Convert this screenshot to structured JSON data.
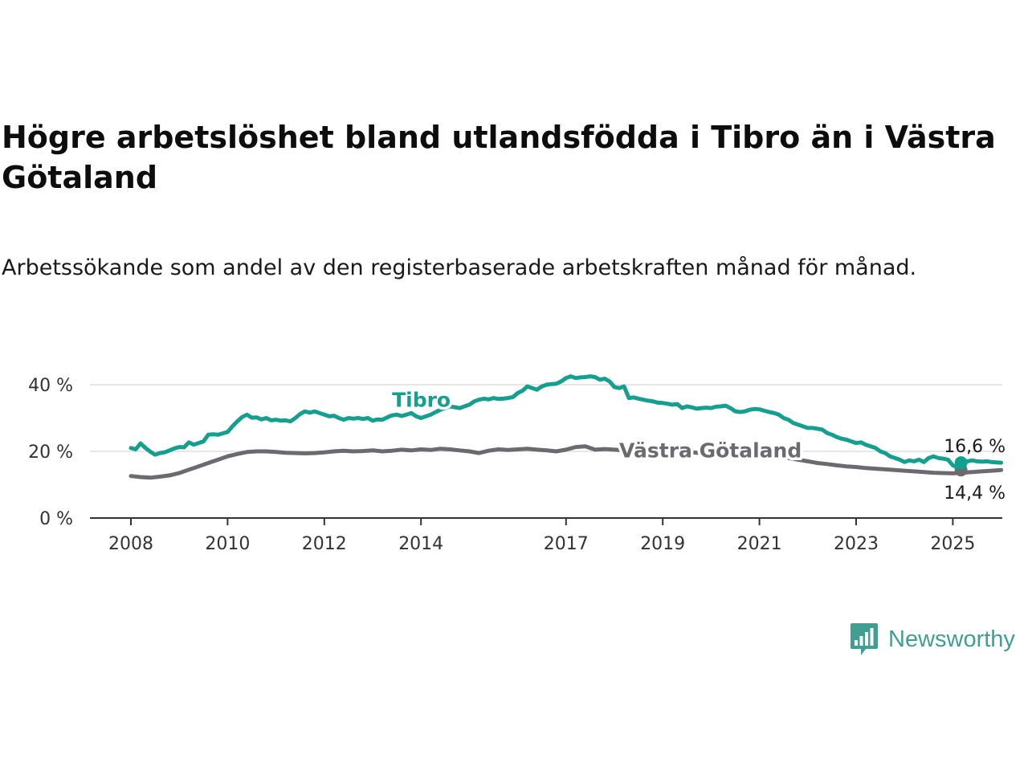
{
  "header": {
    "title": "Högre arbetslöshet bland utlandsfödda i Tibro än i Västra Götaland",
    "subtitle": "Arbetssökande som andel av den registerbaserade arbetskraften månad för månad."
  },
  "brand": {
    "name": "Newsworthy",
    "color": "#3f9f92",
    "icon": "bar-chart-speech-bubble-icon"
  },
  "chart_data": {
    "type": "line",
    "ylim": [
      0,
      40
    ],
    "xlim": [
      2007.8,
      2026.0
    ],
    "grid": true,
    "x_ticks": [
      {
        "value": 2008,
        "label": "2008"
      },
      {
        "value": 2010,
        "label": "2010"
      },
      {
        "value": 2012,
        "label": "2012"
      },
      {
        "value": 2014,
        "label": "2014"
      },
      {
        "value": 2017,
        "label": "2017"
      },
      {
        "value": 2019,
        "label": "2019"
      },
      {
        "value": 2021,
        "label": "2021"
      },
      {
        "value": 2023,
        "label": "2023"
      },
      {
        "value": 2025,
        "label": "2025"
      }
    ],
    "y_ticks": [
      {
        "value": 0,
        "label": "0 %"
      },
      {
        "value": 20,
        "label": "20 %"
      },
      {
        "value": 40,
        "label": "40 %"
      }
    ],
    "series": [
      {
        "name": "Tibro",
        "color": "#14a08e",
        "label_at": [
          2013.4,
          33.4
        ],
        "end_label": "16,6 %",
        "end": [
          2025.17,
          16.6
        ],
        "points": [
          [
            2008.0,
            21.0
          ],
          [
            2008.1,
            20.6
          ],
          [
            2008.2,
            22.4
          ],
          [
            2008.3,
            21.0
          ],
          [
            2008.4,
            19.9
          ],
          [
            2008.5,
            19.0
          ],
          [
            2008.6,
            19.5
          ],
          [
            2008.7,
            19.7
          ],
          [
            2008.8,
            20.3
          ],
          [
            2008.9,
            20.9
          ],
          [
            2009.0,
            21.3
          ],
          [
            2009.1,
            21.2
          ],
          [
            2009.2,
            22.7
          ],
          [
            2009.3,
            22.0
          ],
          [
            2009.4,
            22.5
          ],
          [
            2009.5,
            23.0
          ],
          [
            2009.6,
            25.0
          ],
          [
            2009.7,
            25.1
          ],
          [
            2009.8,
            25.0
          ],
          [
            2009.9,
            25.4
          ],
          [
            2010.0,
            25.8
          ],
          [
            2010.1,
            27.5
          ],
          [
            2010.2,
            29.0
          ],
          [
            2010.3,
            30.3
          ],
          [
            2010.4,
            31.0
          ],
          [
            2010.5,
            30.1
          ],
          [
            2010.6,
            30.2
          ],
          [
            2010.7,
            29.6
          ],
          [
            2010.8,
            30.0
          ],
          [
            2010.9,
            29.3
          ],
          [
            2011.0,
            29.5
          ],
          [
            2011.1,
            29.2
          ],
          [
            2011.2,
            29.3
          ],
          [
            2011.3,
            29.0
          ],
          [
            2011.4,
            30.0
          ],
          [
            2011.5,
            31.2
          ],
          [
            2011.6,
            32.0
          ],
          [
            2011.7,
            31.6
          ],
          [
            2011.8,
            32.0
          ],
          [
            2011.9,
            31.5
          ],
          [
            2012.0,
            31.0
          ],
          [
            2012.1,
            30.5
          ],
          [
            2012.2,
            30.7
          ],
          [
            2012.3,
            30.0
          ],
          [
            2012.4,
            29.5
          ],
          [
            2012.5,
            30.0
          ],
          [
            2012.6,
            29.8
          ],
          [
            2012.7,
            30.0
          ],
          [
            2012.8,
            29.7
          ],
          [
            2012.9,
            30.0
          ],
          [
            2013.0,
            29.2
          ],
          [
            2013.1,
            29.6
          ],
          [
            2013.2,
            29.5
          ],
          [
            2013.3,
            30.2
          ],
          [
            2013.4,
            30.8
          ],
          [
            2013.5,
            31.0
          ],
          [
            2013.6,
            30.6
          ],
          [
            2013.7,
            31.0
          ],
          [
            2013.8,
            31.5
          ],
          [
            2013.9,
            30.5
          ],
          [
            2014.0,
            30.0
          ],
          [
            2014.2,
            31.0
          ],
          [
            2014.4,
            32.5
          ],
          [
            2014.6,
            33.5
          ],
          [
            2014.8,
            33.0
          ],
          [
            2015.0,
            34.0
          ],
          [
            2015.1,
            35.0
          ],
          [
            2015.2,
            35.5
          ],
          [
            2015.3,
            35.8
          ],
          [
            2015.4,
            35.6
          ],
          [
            2015.5,
            36.0
          ],
          [
            2015.6,
            35.7
          ],
          [
            2015.7,
            35.8
          ],
          [
            2015.8,
            36.0
          ],
          [
            2015.9,
            36.3
          ],
          [
            2016.0,
            37.5
          ],
          [
            2016.1,
            38.2
          ],
          [
            2016.2,
            39.5
          ],
          [
            2016.3,
            39.0
          ],
          [
            2016.4,
            38.5
          ],
          [
            2016.5,
            39.5
          ],
          [
            2016.6,
            40.0
          ],
          [
            2016.7,
            40.2
          ],
          [
            2016.8,
            40.3
          ],
          [
            2016.9,
            41.0
          ],
          [
            2017.0,
            42.0
          ],
          [
            2017.1,
            42.5
          ],
          [
            2017.2,
            42.0
          ],
          [
            2017.3,
            42.2
          ],
          [
            2017.4,
            42.3
          ],
          [
            2017.5,
            42.5
          ],
          [
            2017.6,
            42.3
          ],
          [
            2017.7,
            41.5
          ],
          [
            2017.8,
            41.8
          ],
          [
            2017.9,
            41.0
          ],
          [
            2018.0,
            39.3
          ],
          [
            2018.1,
            39.0
          ],
          [
            2018.2,
            39.5
          ],
          [
            2018.3,
            36.0
          ],
          [
            2018.4,
            36.2
          ],
          [
            2018.5,
            35.8
          ],
          [
            2018.6,
            35.5
          ],
          [
            2018.7,
            35.2
          ],
          [
            2018.8,
            35.0
          ],
          [
            2018.9,
            34.6
          ],
          [
            2019.0,
            34.5
          ],
          [
            2019.1,
            34.3
          ],
          [
            2019.2,
            34.0
          ],
          [
            2019.3,
            34.2
          ],
          [
            2019.4,
            33.0
          ],
          [
            2019.5,
            33.5
          ],
          [
            2019.6,
            33.2
          ],
          [
            2019.7,
            32.8
          ],
          [
            2019.8,
            33.0
          ],
          [
            2019.9,
            33.1
          ],
          [
            2020.0,
            33.0
          ],
          [
            2020.1,
            33.4
          ],
          [
            2020.2,
            33.5
          ],
          [
            2020.3,
            33.7
          ],
          [
            2020.4,
            33.0
          ],
          [
            2020.5,
            32.0
          ],
          [
            2020.6,
            31.8
          ],
          [
            2020.7,
            32.0
          ],
          [
            2020.8,
            32.5
          ],
          [
            2020.9,
            32.7
          ],
          [
            2021.0,
            32.6
          ],
          [
            2021.1,
            32.2
          ],
          [
            2021.2,
            31.8
          ],
          [
            2021.3,
            31.5
          ],
          [
            2021.4,
            31.0
          ],
          [
            2021.5,
            30.0
          ],
          [
            2021.6,
            29.5
          ],
          [
            2021.7,
            28.5
          ],
          [
            2021.8,
            28.0
          ],
          [
            2021.9,
            27.5
          ],
          [
            2022.0,
            27.0
          ],
          [
            2022.1,
            27.0
          ],
          [
            2022.2,
            26.8
          ],
          [
            2022.3,
            26.5
          ],
          [
            2022.4,
            25.5
          ],
          [
            2022.5,
            25.0
          ],
          [
            2022.6,
            24.3
          ],
          [
            2022.7,
            23.8
          ],
          [
            2022.8,
            23.5
          ],
          [
            2022.9,
            23.0
          ],
          [
            2023.0,
            22.5
          ],
          [
            2023.1,
            22.7
          ],
          [
            2023.2,
            22.0
          ],
          [
            2023.3,
            21.5
          ],
          [
            2023.4,
            21.0
          ],
          [
            2023.5,
            20.0
          ],
          [
            2023.6,
            19.5
          ],
          [
            2023.7,
            18.5
          ],
          [
            2023.8,
            18.0
          ],
          [
            2023.9,
            17.5
          ],
          [
            2024.0,
            16.8
          ],
          [
            2024.1,
            17.3
          ],
          [
            2024.2,
            17.0
          ],
          [
            2024.3,
            17.5
          ],
          [
            2024.4,
            16.8
          ],
          [
            2024.5,
            18.0
          ],
          [
            2024.6,
            18.5
          ],
          [
            2024.7,
            18.0
          ],
          [
            2024.8,
            17.8
          ],
          [
            2024.9,
            17.5
          ],
          [
            2025.0,
            15.8
          ],
          [
            2025.1,
            15.2
          ],
          [
            2025.2,
            16.0
          ],
          [
            2025.3,
            17.0
          ],
          [
            2025.4,
            17.3
          ],
          [
            2025.5,
            17.0
          ],
          [
            2025.6,
            16.9
          ],
          [
            2025.7,
            17.0
          ],
          [
            2025.8,
            16.8
          ],
          [
            2025.9,
            16.7
          ],
          [
            2026.0,
            16.6
          ]
        ]
      },
      {
        "name": "Västra Götaland",
        "color": "#6b6a70",
        "label_at": [
          2018.1,
          18.2
        ],
        "end_label": "14,4 %",
        "end": [
          2025.17,
          14.4
        ],
        "points": [
          [
            2008.0,
            12.6
          ],
          [
            2008.2,
            12.3
          ],
          [
            2008.4,
            12.1
          ],
          [
            2008.6,
            12.4
          ],
          [
            2008.8,
            12.8
          ],
          [
            2009.0,
            13.5
          ],
          [
            2009.2,
            14.5
          ],
          [
            2009.4,
            15.5
          ],
          [
            2009.6,
            16.5
          ],
          [
            2009.8,
            17.5
          ],
          [
            2010.0,
            18.5
          ],
          [
            2010.2,
            19.2
          ],
          [
            2010.4,
            19.8
          ],
          [
            2010.6,
            20.0
          ],
          [
            2010.8,
            20.0
          ],
          [
            2011.0,
            19.8
          ],
          [
            2011.2,
            19.6
          ],
          [
            2011.4,
            19.5
          ],
          [
            2011.6,
            19.4
          ],
          [
            2011.8,
            19.5
          ],
          [
            2012.0,
            19.7
          ],
          [
            2012.2,
            20.0
          ],
          [
            2012.4,
            20.2
          ],
          [
            2012.6,
            20.0
          ],
          [
            2012.8,
            20.1
          ],
          [
            2013.0,
            20.3
          ],
          [
            2013.2,
            20.0
          ],
          [
            2013.4,
            20.2
          ],
          [
            2013.6,
            20.5
          ],
          [
            2013.8,
            20.3
          ],
          [
            2014.0,
            20.6
          ],
          [
            2014.2,
            20.4
          ],
          [
            2014.4,
            20.8
          ],
          [
            2014.6,
            20.6
          ],
          [
            2014.8,
            20.3
          ],
          [
            2015.0,
            20.0
          ],
          [
            2015.2,
            19.5
          ],
          [
            2015.4,
            20.2
          ],
          [
            2015.6,
            20.6
          ],
          [
            2015.8,
            20.4
          ],
          [
            2016.0,
            20.6
          ],
          [
            2016.2,
            20.8
          ],
          [
            2016.4,
            20.5
          ],
          [
            2016.6,
            20.3
          ],
          [
            2016.8,
            20.0
          ],
          [
            2017.0,
            20.5
          ],
          [
            2017.2,
            21.3
          ],
          [
            2017.4,
            21.5
          ],
          [
            2017.6,
            20.5
          ],
          [
            2017.8,
            20.7
          ],
          [
            2018.0,
            20.5
          ],
          [
            2018.2,
            20.3
          ],
          [
            2018.4,
            20.0
          ],
          [
            2018.6,
            19.8
          ],
          [
            2018.8,
            19.6
          ],
          [
            2019.0,
            19.4
          ],
          [
            2019.2,
            19.8
          ],
          [
            2019.4,
            19.5
          ],
          [
            2019.6,
            19.7
          ],
          [
            2019.8,
            19.5
          ],
          [
            2020.0,
            19.6
          ],
          [
            2020.2,
            19.7
          ],
          [
            2020.4,
            19.8
          ],
          [
            2020.6,
            20.0
          ],
          [
            2020.8,
            19.8
          ],
          [
            2021.0,
            19.5
          ],
          [
            2021.2,
            19.0
          ],
          [
            2021.4,
            18.5
          ],
          [
            2021.6,
            18.0
          ],
          [
            2021.8,
            17.5
          ],
          [
            2022.0,
            17.0
          ],
          [
            2022.2,
            16.5
          ],
          [
            2022.4,
            16.2
          ],
          [
            2022.6,
            15.8
          ],
          [
            2022.8,
            15.5
          ],
          [
            2023.0,
            15.3
          ],
          [
            2023.2,
            15.0
          ],
          [
            2023.4,
            14.8
          ],
          [
            2023.6,
            14.6
          ],
          [
            2023.8,
            14.4
          ],
          [
            2024.0,
            14.2
          ],
          [
            2024.2,
            14.0
          ],
          [
            2024.4,
            13.8
          ],
          [
            2024.6,
            13.6
          ],
          [
            2024.8,
            13.5
          ],
          [
            2025.0,
            13.4
          ],
          [
            2025.2,
            13.6
          ],
          [
            2025.4,
            13.8
          ],
          [
            2025.6,
            14.0
          ],
          [
            2025.8,
            14.2
          ],
          [
            2026.0,
            14.4
          ]
        ]
      }
    ]
  }
}
